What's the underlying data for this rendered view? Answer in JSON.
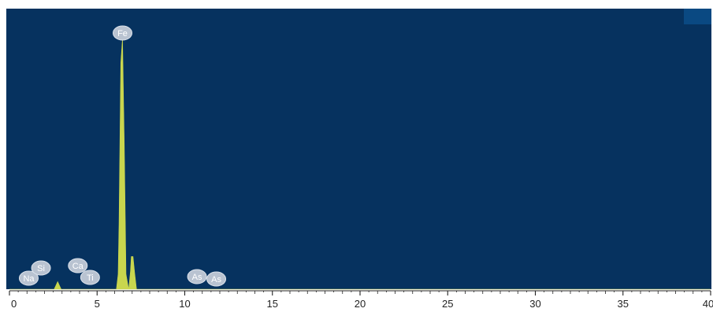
{
  "chart_data": {
    "type": "area",
    "title": "",
    "xlabel": "",
    "ylabel": "",
    "xlim": [
      0,
      40
    ],
    "x_ticks": [
      0,
      5,
      10,
      15,
      20,
      25,
      30,
      35,
      40
    ],
    "x_tick_labels": [
      "0",
      "5",
      "10",
      "15",
      "20",
      "25",
      "30",
      "35",
      "40"
    ],
    "ylim": [
      0,
      100
    ],
    "grid": false,
    "background_color": "#06325F",
    "fill_color": "#C9D64E",
    "label_color": "#B9C3D1",
    "series": [
      {
        "x": [
          0,
          2.55,
          2.75,
          2.95,
          6.1,
          6.2,
          6.25,
          6.35,
          6.45,
          6.55,
          6.65,
          6.8,
          6.9,
          6.95,
          7.05,
          7.15,
          7.25,
          40
        ],
        "y": [
          0,
          0,
          3,
          0,
          0,
          6,
          26,
          90,
          100,
          58,
          6,
          0,
          7,
          13,
          13,
          6,
          0,
          0
        ]
      }
    ],
    "peak_labels": [
      {
        "text": "Na",
        "x": 1.1,
        "y": 2
      },
      {
        "text": "Si",
        "x": 1.8,
        "y": 6
      },
      {
        "text": "Ca",
        "x": 3.9,
        "y": 7
      },
      {
        "text": "Ti",
        "x": 4.6,
        "y": 4
      },
      {
        "text": "Fe",
        "x": 6.45,
        "y": 100
      },
      {
        "text": "As",
        "x": 10.7,
        "y": 4
      },
      {
        "text": "As",
        "x": 11.8,
        "y": 3
      }
    ]
  }
}
